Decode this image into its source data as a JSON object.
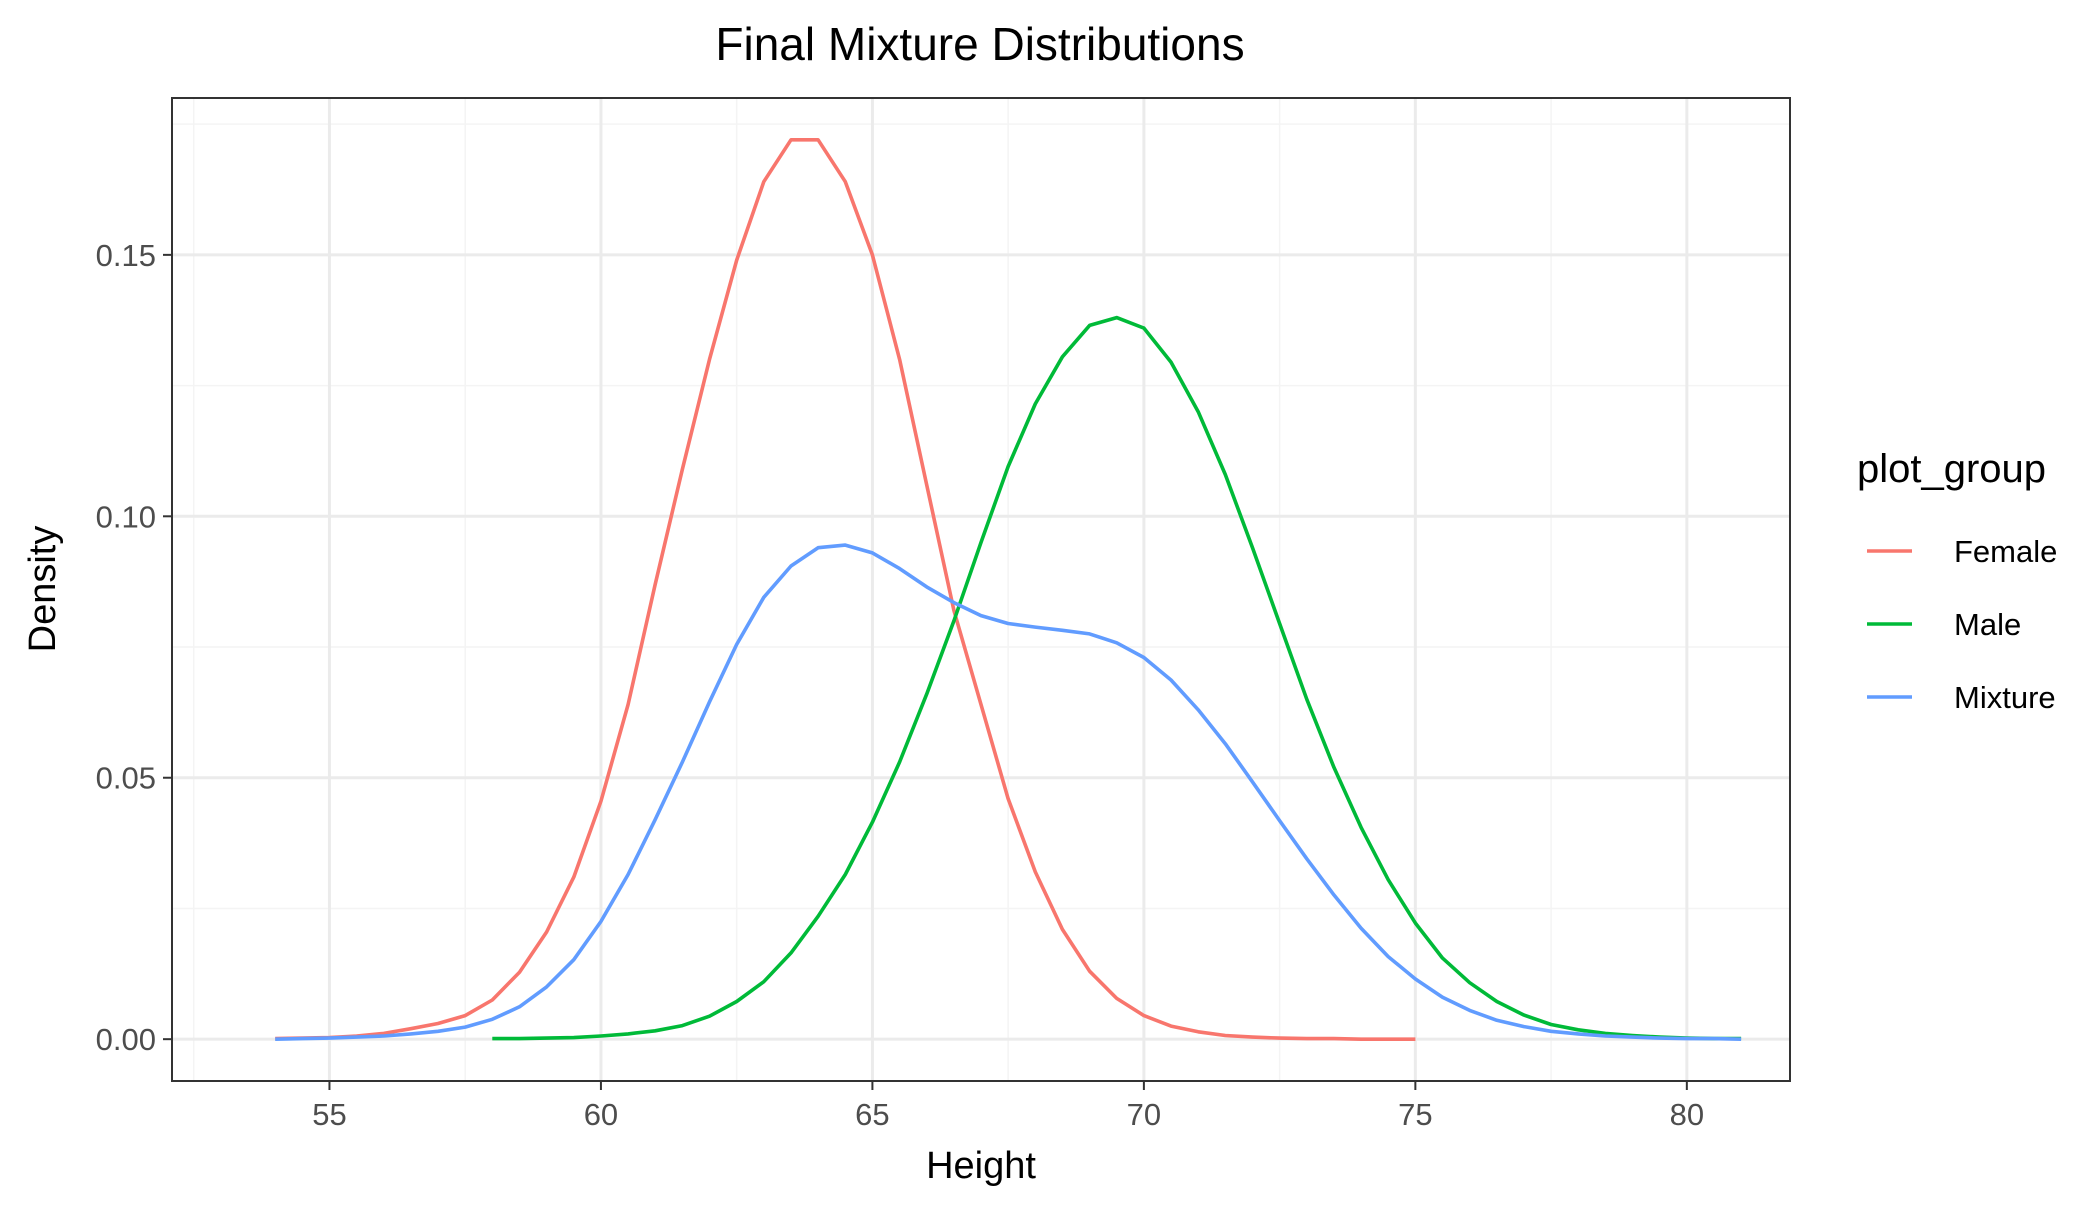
{
  "chart_data": {
    "type": "line",
    "title": "Final Mixture Distributions",
    "xlabel": "Height",
    "ylabel": "Density",
    "xlim": [
      52.1,
      81.9
    ],
    "ylim": [
      -0.008,
      0.18
    ],
    "x_ticks": [
      55,
      60,
      65,
      70,
      75,
      80
    ],
    "x_tick_labels": [
      "55",
      "60",
      "65",
      "70",
      "75",
      "80"
    ],
    "y_ticks": [
      0.0,
      0.05,
      0.1,
      0.15
    ],
    "y_tick_labels": [
      "0.00",
      "0.05",
      "0.10",
      "0.15"
    ],
    "grid": true,
    "legend": {
      "title": "plot_group",
      "placement": "right"
    },
    "series": [
      {
        "name": "Female",
        "color": "#F8766D",
        "x": [
          54,
          54.5,
          55,
          55.5,
          56,
          56.5,
          57,
          57.5,
          58,
          58.5,
          59,
          59.5,
          60,
          60.5,
          61,
          61.5,
          62,
          62.5,
          63,
          63.5,
          64,
          64.5,
          65,
          65.5,
          66,
          66.5,
          67,
          67.5,
          68,
          68.5,
          69,
          69.5,
          70,
          70.5,
          71,
          71.5,
          72,
          72.5,
          73,
          73.5,
          74,
          74.5,
          75
        ],
        "values": [
          0.0001,
          0.0002,
          0.0003,
          0.0006,
          0.0011,
          0.002,
          0.003,
          0.0045,
          0.0075,
          0.0128,
          0.0205,
          0.031,
          0.0455,
          0.064,
          0.087,
          0.109,
          0.13,
          0.149,
          0.164,
          0.172,
          0.172,
          0.164,
          0.15,
          0.13,
          0.106,
          0.082,
          0.064,
          0.046,
          0.032,
          0.021,
          0.013,
          0.0078,
          0.0045,
          0.0025,
          0.0014,
          0.0007,
          0.0004,
          0.0002,
          0.0001,
          0.0001,
          0.0,
          0.0,
          0.0
        ]
      },
      {
        "name": "Male",
        "color": "#00BA38",
        "x": [
          58,
          58.5,
          59,
          59.5,
          60,
          60.5,
          61,
          61.5,
          62,
          62.5,
          63,
          63.5,
          64,
          64.5,
          65,
          65.5,
          66,
          66.5,
          67,
          67.5,
          68,
          68.5,
          69,
          69.5,
          70,
          70.5,
          71,
          71.5,
          72,
          72.5,
          73,
          73.5,
          74,
          74.5,
          75,
          75.5,
          76,
          76.5,
          77,
          77.5,
          78,
          78.5,
          79,
          79.5,
          80,
          80.5,
          81
        ],
        "values": [
          0.0001,
          0.0001,
          0.0002,
          0.0003,
          0.0006,
          0.001,
          0.0016,
          0.0026,
          0.0044,
          0.0072,
          0.011,
          0.0165,
          0.0235,
          0.0315,
          0.0415,
          0.053,
          0.066,
          0.08,
          0.095,
          0.1095,
          0.1215,
          0.1305,
          0.1365,
          0.138,
          0.136,
          0.1295,
          0.12,
          0.108,
          0.094,
          0.0795,
          0.065,
          0.052,
          0.0405,
          0.0305,
          0.0222,
          0.0155,
          0.0108,
          0.0072,
          0.0046,
          0.0028,
          0.0018,
          0.0011,
          0.0007,
          0.0004,
          0.0002,
          0.0001,
          0.0001
        ]
      },
      {
        "name": "Mixture",
        "color": "#619CFF",
        "x": [
          54,
          54.5,
          55,
          55.5,
          56,
          56.5,
          57,
          57.5,
          58,
          58.5,
          59,
          59.5,
          60,
          60.5,
          61,
          61.5,
          62,
          62.5,
          63,
          63.5,
          64,
          64.5,
          65,
          65.5,
          66,
          66.5,
          67,
          67.5,
          68,
          68.5,
          69,
          69.5,
          70,
          70.5,
          71,
          71.5,
          72,
          72.5,
          73,
          73.5,
          74,
          74.5,
          75,
          75.5,
          76,
          76.5,
          77,
          77.5,
          78,
          78.5,
          79,
          79.5,
          80,
          80.5,
          81
        ],
        "values": [
          0.0,
          0.0001,
          0.0002,
          0.0004,
          0.0006,
          0.001,
          0.0015,
          0.0023,
          0.0038,
          0.0062,
          0.01,
          0.0152,
          0.0225,
          0.0315,
          0.042,
          0.053,
          0.0645,
          0.0755,
          0.0845,
          0.0905,
          0.094,
          0.0945,
          0.093,
          0.09,
          0.0865,
          0.0835,
          0.081,
          0.0795,
          0.0788,
          0.0782,
          0.0775,
          0.0758,
          0.073,
          0.0687,
          0.063,
          0.0565,
          0.0492,
          0.0418,
          0.0345,
          0.0276,
          0.0212,
          0.0158,
          0.0115,
          0.008,
          0.0055,
          0.0036,
          0.0024,
          0.0015,
          0.001,
          0.0006,
          0.0004,
          0.0002,
          0.0001,
          0.0001,
          0.0
        ]
      }
    ]
  },
  "colors": {
    "panel_border": "#333333",
    "grid_major": "#EBEBEB",
    "grid_minor": "#F4F4F4",
    "tick_text": "#4D4D4D",
    "title_text": "#000000"
  }
}
